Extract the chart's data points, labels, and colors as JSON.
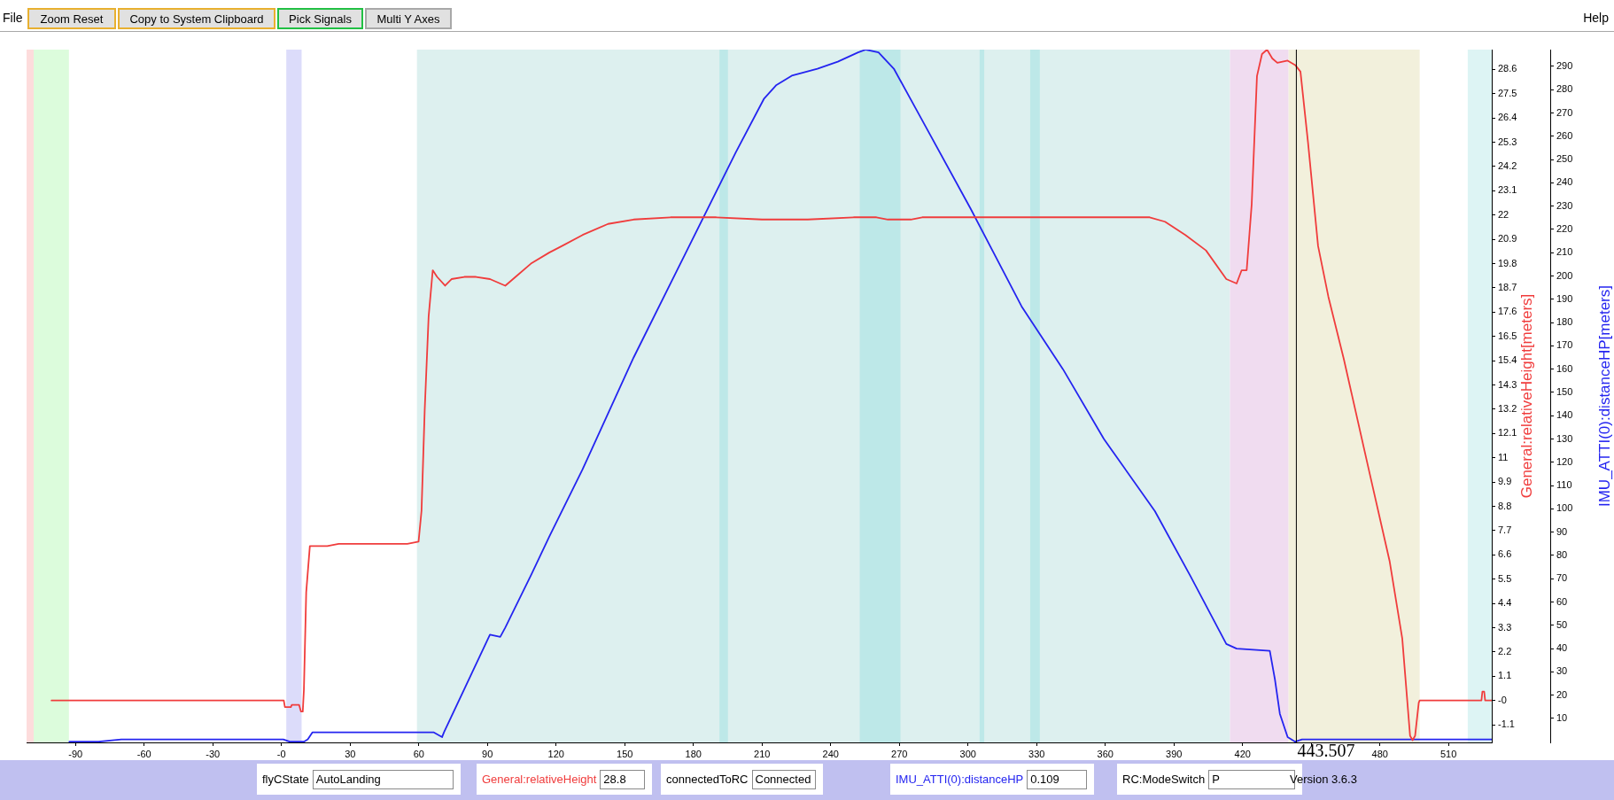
{
  "chart_data": {
    "type": "line",
    "xlim": [
      -111.4,
      528.9
    ],
    "xticks": [
      -90,
      -60,
      -30,
      {
        "value": 0,
        "label": "-0"
      },
      30,
      60,
      90,
      120,
      150,
      180,
      210,
      240,
      270,
      300,
      330,
      360,
      390,
      420,
      {
        "value": 450,
        "label": null
      },
      480,
      510
    ],
    "ylim": [
      -1.9,
      29.5
    ],
    "yticks": [
      -1.1,
      {
        "value": 0,
        "label": "-0"
      },
      1.1,
      2.2,
      3.3,
      4.4,
      5.5,
      6.6,
      7.7,
      8.8,
      9.9,
      11,
      12.1,
      13.2,
      14.3,
      15.4,
      16.5,
      17.6,
      18.7,
      19.8,
      20.9,
      22,
      23.1,
      24.2,
      25.3,
      26.4,
      27.5,
      28.6
    ],
    "y2lim": [
      -0.3,
      297.2
    ],
    "y2ticks": [
      10,
      20,
      30,
      40,
      50,
      60,
      70,
      80,
      90,
      100,
      110,
      120,
      130,
      140,
      150,
      160,
      170,
      180,
      190,
      200,
      210,
      220,
      230,
      240,
      250,
      260,
      270,
      280,
      290
    ],
    "ylabel": "General:relativeHeight[meters]",
    "y2label": "IMU_ATTI(0):distanceHP[meters]",
    "series": [
      {
        "color": "#f03c3c",
        "x": [
          -100.5,
          1.0,
          1.5,
          4.1,
          4.5,
          7.7,
          8.5,
          9.3,
          9.8,
          10.8,
          12.4,
          20,
          25,
          35,
          45,
          55,
          59.9,
          61.2,
          62.6,
          64.3,
          66.1,
          68,
          71.5,
          74.3,
          79.9,
          85,
          91.1,
          97.8,
          102.3,
          109,
          117,
          122.6,
          131.6,
          142.7,
          153.9,
          170,
          190,
          210,
          230,
          250,
          260,
          265,
          275,
          280,
          300,
          320,
          341.5,
          379.4,
          386.1,
          395,
          404,
          412.9,
          417.4,
          419.6,
          421.8,
          424,
          426.3,
          428.5,
          430.7,
          433,
          435.2,
          439.7,
          443,
          445.3,
          448.6,
          453,
          457.5,
          464.2,
          475.3,
          484.3,
          489.8,
          493.2,
          494.3,
          495.4,
          497.0,
          497.4,
          524.4,
          524.8,
          525.6,
          526,
          528.9
        ],
        "values": [
          0,
          0,
          -0.3,
          -0.3,
          -0.2,
          -0.2,
          -0.5,
          -0.5,
          0.5,
          4.9,
          7.0,
          7.0,
          7.1,
          7.1,
          7.1,
          7.1,
          7.2,
          8.6,
          13.2,
          17.4,
          19.5,
          19.2,
          18.8,
          19.1,
          19.2,
          19.2,
          19.1,
          18.8,
          19.2,
          19.8,
          20.3,
          20.6,
          21.1,
          21.6,
          21.8,
          21.9,
          21.9,
          21.8,
          21.8,
          21.9,
          21.9,
          21.8,
          21.8,
          21.9,
          21.9,
          21.9,
          21.9,
          21.9,
          21.7,
          21.1,
          20.4,
          19.1,
          18.9,
          19.5,
          19.5,
          22.5,
          28.3,
          29.3,
          29.5,
          29.1,
          28.9,
          29.0,
          28.8,
          28.5,
          25.3,
          20.6,
          18.3,
          15.5,
          10.4,
          6.3,
          2.8,
          -1.6,
          -1.8,
          -1.6,
          -0.1,
          0,
          0,
          0.4,
          0.4,
          0,
          0
        ]
      },
      {
        "color": "#2424f0",
        "axis": "y2",
        "x": [
          -92.7,
          -80,
          -70,
          -20,
          0.8,
          3.6,
          9.8,
          11.5,
          13.5,
          15.3,
          33.1,
          50.9,
          66.6,
          70.2,
          71,
          91.1,
          95.6,
          97.8,
          109.3,
          117,
          131.6,
          153.9,
          176.2,
          198.5,
          210.8,
          216.3,
          223,
          234.2,
          243.1,
          252,
          255.4,
          260.9,
          267.6,
          278.8,
          301.1,
          323.4,
          341.5,
          359.4,
          381.7,
          397.3,
          412.9,
          417.4,
          431.9,
          434.1,
          436.3,
          439.7,
          443,
          446,
          480,
          528.9
        ],
        "values": [
          0,
          0,
          1,
          1,
          1,
          0,
          0,
          1,
          4,
          4,
          4,
          4,
          4,
          2,
          4,
          46,
          45,
          49,
          72,
          88,
          117,
          165,
          209,
          253,
          276,
          282,
          286,
          289,
          292,
          296,
          297.2,
          296,
          289,
          269,
          229,
          187,
          160,
          130,
          99,
          71,
          42,
          40,
          39,
          27,
          12,
          2,
          0,
          1,
          1,
          1
        ]
      }
    ],
    "bands": [
      {
        "axis": "x",
        "from": -111.4,
        "to": -108.3,
        "color": "#fddcdc"
      },
      {
        "axis": "x",
        "from": -108.3,
        "to": -92.9,
        "color": "#dcfcdc"
      },
      {
        "axis": "x",
        "from": 2.1,
        "to": 8.8,
        "color": "#dcdcfa"
      },
      {
        "axis": "x",
        "from": 59.2,
        "to": 414.5,
        "color": "#ddf0ef"
      },
      {
        "axis": "x",
        "from": 191.4,
        "to": 195.1,
        "color": "#bde8e8"
      },
      {
        "axis": "x",
        "from": 252.7,
        "to": 270.5,
        "color": "#bde8e8"
      },
      {
        "axis": "x",
        "from": 305.1,
        "to": 307.1,
        "color": "#bde8e8"
      },
      {
        "axis": "x",
        "from": 327.2,
        "to": 331.4,
        "color": "#bde8e8"
      },
      {
        "axis": "x",
        "from": 414.5,
        "to": 440.1,
        "color": "#f0dcf0"
      },
      {
        "axis": "x",
        "from": 440.1,
        "to": 497.4,
        "color": "#f2f0dc"
      },
      {
        "axis": "x",
        "from": 518.4,
        "to": 528.9,
        "color": "#ddf4f4"
      }
    ],
    "ref_lines": [
      {
        "axis": "x",
        "value": 443.507,
        "label": "443.507",
        "color": "#000000"
      }
    ],
    "annotations": [
      "File",
      "Zoom Reset",
      "Copy to System Clipboard",
      "Pick Signals",
      "Multi Y Axes",
      "Help",
      "flyCState",
      "AutoLanding",
      "General:relativeHeight",
      "28.8",
      "connectedToRC",
      "Connected",
      "IMU_ATTI(0):distanceHP",
      "0.109",
      "RC:ModeSwitch",
      "P",
      "Version 3.6.3"
    ],
    "grid": false,
    "legend": false,
    "marker": "none",
    "line_style": "solid"
  }
}
